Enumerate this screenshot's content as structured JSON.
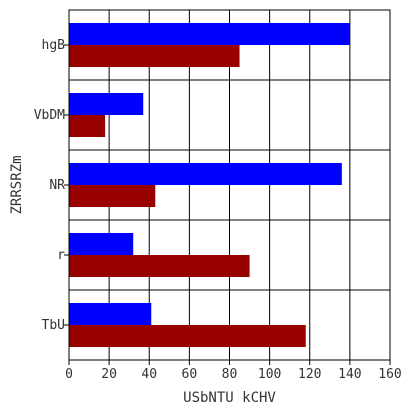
{
  "chart_data": {
    "type": "bar",
    "orientation": "horizontal",
    "title": "",
    "xlabel": "USbNTU kCHV",
    "ylabel": "ZRRSRZm",
    "categories": [
      "hgB",
      "VbDM",
      "NR",
      "r",
      "TbU"
    ],
    "series": [
      {
        "values": [
          140,
          37,
          136,
          32,
          41
        ],
        "color": "#0000ff"
      },
      {
        "values": [
          85,
          18,
          43,
          90,
          118
        ],
        "color": "#990000"
      }
    ],
    "xlim": [
      0,
      160
    ],
    "xticks": [
      0,
      20,
      40,
      60,
      80,
      100,
      120,
      140,
      160
    ],
    "grid": true,
    "legend": "none"
  }
}
